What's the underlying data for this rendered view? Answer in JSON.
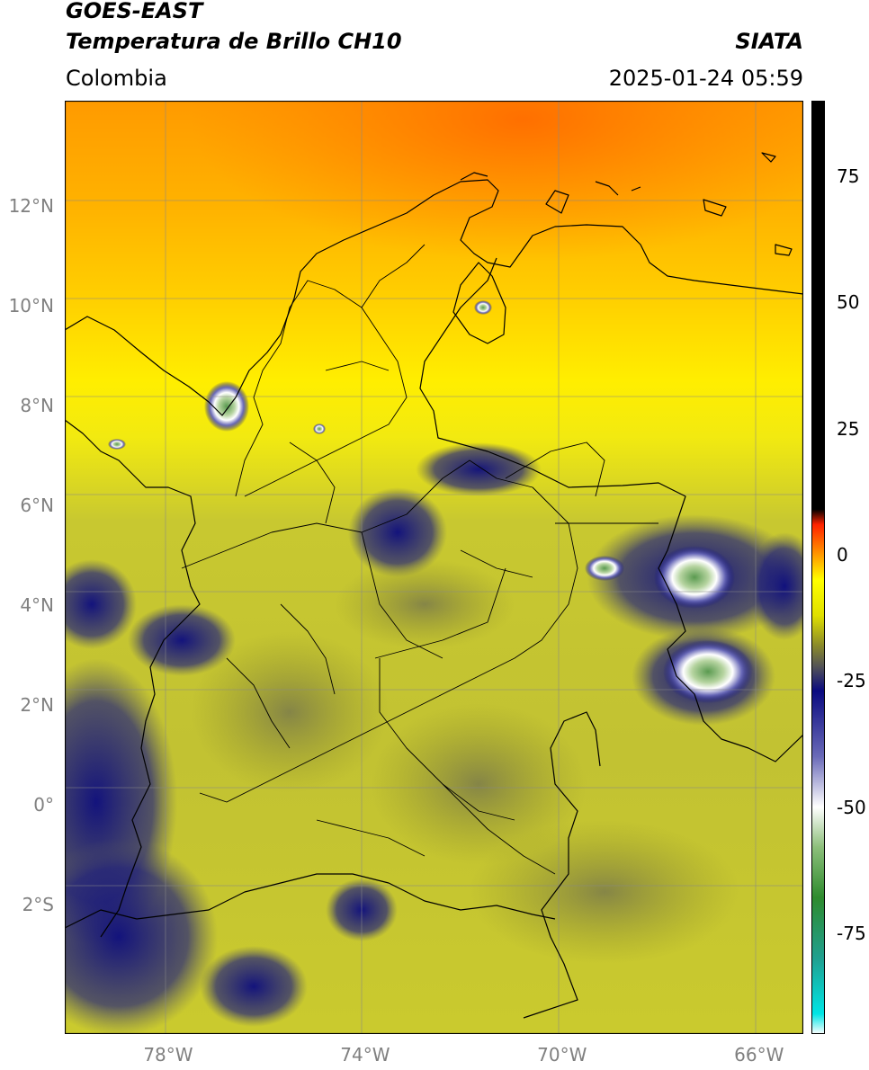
{
  "header": {
    "satellite": "GOES-EAST",
    "product": "Temperatura de Brillo CH10",
    "agency": "SIATA",
    "region": "Colombia",
    "datetime": "2025-01-24 05:59"
  },
  "map": {
    "lon_range": [
      -80.1,
      -65.1
    ],
    "lat_range": [
      -4.6,
      14.1
    ],
    "lat_ticks": [
      "12°N",
      "10°N",
      "8°N",
      "6°N",
      "4°N",
      "2°N",
      "0°",
      "2°S"
    ],
    "lon_ticks": [
      "78°W",
      "74°W",
      "70°W",
      "66°W"
    ],
    "lat_tick_values": [
      12,
      10,
      8,
      6,
      4,
      2,
      0,
      -2
    ],
    "lon_tick_values": [
      -78,
      -74,
      -70,
      -66
    ],
    "gridlines": true
  },
  "colorbar": {
    "range": [
      -95,
      90
    ],
    "ticks": [
      "75",
      "50",
      "25",
      "0",
      "-25",
      "-50",
      "-75"
    ],
    "tick_values": [
      75,
      50,
      25,
      0,
      -25,
      -50,
      -75
    ],
    "stops": [
      {
        "v": -95,
        "color": "#ffffff"
      },
      {
        "v": -91,
        "color": "#00e5e5"
      },
      {
        "v": -80,
        "color": "#20a090"
      },
      {
        "v": -68,
        "color": "#2e8b2e"
      },
      {
        "v": -58,
        "color": "#8cbf7a"
      },
      {
        "v": -50,
        "color": "#ffffff"
      },
      {
        "v": -40,
        "color": "#6a6ab8"
      },
      {
        "v": -27,
        "color": "#0a0a80"
      },
      {
        "v": -22,
        "color": "#555555"
      },
      {
        "v": -18,
        "color": "#8a8a2a"
      },
      {
        "v": -12,
        "color": "#e0e000"
      },
      {
        "v": -5,
        "color": "#ffff00"
      },
      {
        "v": 0,
        "color": "#ff9900"
      },
      {
        "v": 6,
        "color": "#ff2200"
      },
      {
        "v": 9,
        "color": "#000000"
      },
      {
        "v": 90,
        "color": "#000000"
      }
    ]
  }
}
